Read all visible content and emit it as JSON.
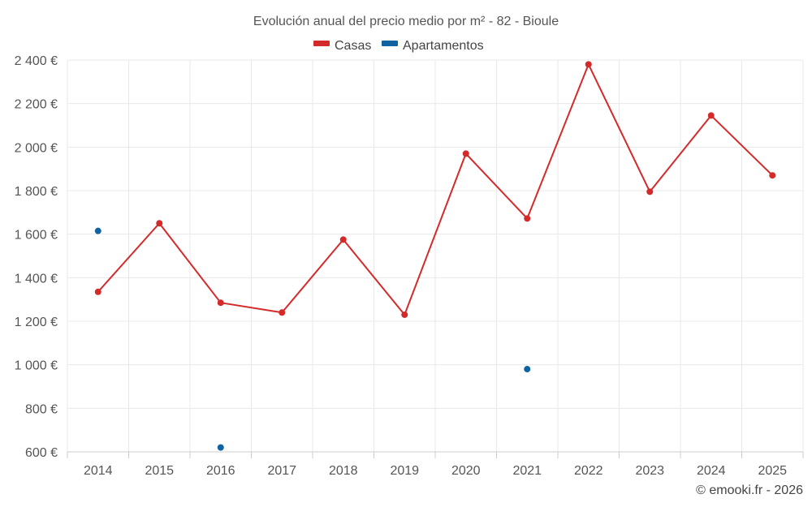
{
  "chart_data": {
    "type": "line",
    "title": "Evolución anual del precio medio por m² - 82 - Bioule",
    "categories": [
      "2014",
      "2015",
      "2016",
      "2017",
      "2018",
      "2019",
      "2020",
      "2021",
      "2022",
      "2023",
      "2024",
      "2025"
    ],
    "ylim": [
      600,
      2400
    ],
    "yticks": [
      600,
      800,
      1000,
      1200,
      1400,
      1600,
      1800,
      2000,
      2200,
      2400
    ],
    "ytick_labels": [
      "600 €",
      "800 €",
      "1 000 €",
      "1 200 €",
      "1 400 €",
      "1 600 €",
      "1 800 €",
      "2 000 €",
      "2 200 €",
      "2 400 €"
    ],
    "grid": true,
    "legend_position": "top-center",
    "series": [
      {
        "name": "Casas",
        "color": "#d42a2a",
        "values": [
          1335,
          1650,
          1285,
          1240,
          1575,
          1230,
          1970,
          1672,
          2380,
          1795,
          2145,
          1870
        ]
      },
      {
        "name": "Apartamentos",
        "color": "#0f63a0",
        "values": [
          1615,
          null,
          620,
          null,
          null,
          null,
          null,
          980,
          null,
          null,
          null,
          null
        ]
      }
    ]
  },
  "credit": "© emooki.fr - 2026"
}
